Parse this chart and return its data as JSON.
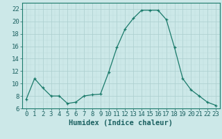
{
  "x": [
    0,
    1,
    2,
    3,
    4,
    5,
    6,
    7,
    8,
    9,
    10,
    11,
    12,
    13,
    14,
    15,
    16,
    17,
    18,
    19,
    20,
    21,
    22,
    23
  ],
  "y": [
    7.5,
    10.8,
    9.3,
    8.0,
    8.0,
    6.8,
    7.0,
    8.0,
    8.2,
    8.3,
    11.8,
    15.8,
    18.8,
    20.5,
    21.8,
    21.8,
    21.8,
    20.3,
    15.8,
    10.8,
    9.0,
    8.0,
    7.0,
    6.5
  ],
  "xlabel": "Humidex (Indice chaleur)",
  "xlim": [
    -0.5,
    23.5
  ],
  "ylim": [
    6,
    23
  ],
  "yticks": [
    6,
    8,
    10,
    12,
    14,
    16,
    18,
    20,
    22
  ],
  "xticks": [
    0,
    1,
    2,
    3,
    4,
    5,
    6,
    7,
    8,
    9,
    10,
    11,
    12,
    13,
    14,
    15,
    16,
    17,
    18,
    19,
    20,
    21,
    22,
    23
  ],
  "line_color": "#1a7a6a",
  "marker": "+",
  "bg_color": "#cce8e8",
  "grid_major_color": "#aacece",
  "grid_minor_color": "#bbdada",
  "axis_color": "#1a7a6a",
  "tick_color": "#1a6060",
  "label_fontsize": 7.5,
  "tick_fontsize": 6.5
}
